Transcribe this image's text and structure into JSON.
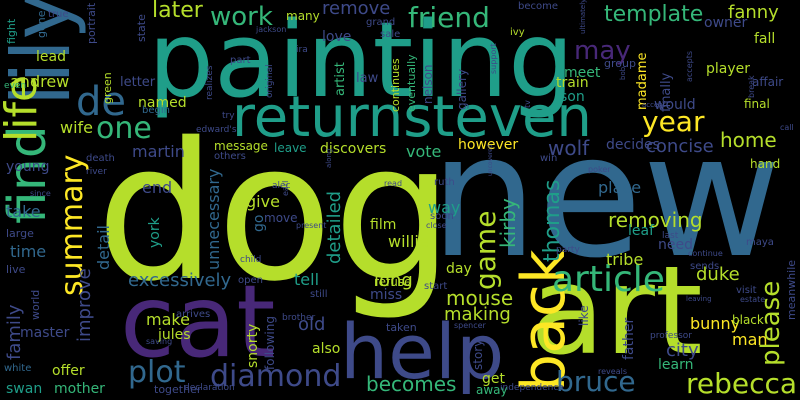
{
  "background": "#000000",
  "palette": {
    "lime": "#b5de2b",
    "green": "#35b779",
    "teal": "#1f9e89",
    "blue": "#31688e",
    "indigo": "#3e4a89",
    "purple": "#482878",
    "yellow": "#fde725"
  },
  "words": {
    "dog": "dog",
    "new": "new",
    "painting": "painting",
    "art": "art",
    "cat": "cat",
    "lily": "lily",
    "returnsteven": "returnsteven",
    "help": "help",
    "find": "find",
    "life": "life",
    "back": "back",
    "article": "article",
    "one": "one",
    "de": "de",
    "summary": "summary",
    "diamond": "diamond",
    "plot": "plot",
    "bruce": "bruce",
    "rebecca": "rebecca",
    "mouse": "mouse",
    "friend": "friend",
    "work": "work",
    "later": "later",
    "may": "may",
    "year": "year",
    "template": "template",
    "fanny": "fanny",
    "game": "game",
    "thomas": "thomas",
    "kirby": "kirby",
    "please": "please",
    "home": "home",
    "concise": "concise",
    "removing": "removing",
    "place": "place",
    "detailed": "detailed",
    "excessively": "excessively",
    "unnecessary": "unnecessary",
    "improve": "improve",
    "detail": "detail",
    "family": "family",
    "long": "long",
    "making": "making",
    "tribe": "tribe",
    "duke": "duke",
    "city": "city",
    "bunny": "bunny",
    "becomes": "becomes",
    "make": "make",
    "take": "take",
    "time": "time",
    "end": "end",
    "york": "york",
    "give": "give",
    "old": "old",
    "tell": "tell",
    "willie": "willie",
    "film": "film",
    "way": "way",
    "martin": "martin",
    "named": "named",
    "message": "message",
    "vote": "vote",
    "however": "however",
    "wolf": "wolf",
    "decides": "decides",
    "meet": "meet",
    "son": "son",
    "madame": "madame",
    "train": "train",
    "remove": "remove",
    "love": "love",
    "artist": "artist",
    "law": "law",
    "andrew": "andrew",
    "lead": "lead",
    "letter": "letter",
    "wife": "wife",
    "young": "young",
    "discovers": "discovers",
    "leave": "leave",
    "go": "go",
    "move": "move",
    "refuse": "refuse",
    "miss": "miss",
    "day": "day",
    "leaf": "leaf",
    "need": "need",
    "father": "father",
    "learn": "learn",
    "man": "man",
    "black": "black",
    "plot2": "plot",
    "jules": "jules",
    "snorty": "snorty",
    "following": "following",
    "also": "also",
    "get": "get",
    "away": "away",
    "offer": "offer",
    "mother": "mother",
    "master": "master",
    "swan": "swan",
    "many": "many",
    "finally": "finally",
    "would": "would",
    "player": "player",
    "fall": "fall",
    "owner": "owner",
    "final": "final",
    "affair": "affair",
    "hand": "hand",
    "story": "story",
    "like": "like",
    "gallery": "gallery",
    "nelson": "nelson",
    "eventually": "eventually",
    "continues": "continues",
    "portrait": "portrait",
    "state": "state",
    "fight": "fight",
    "gene": "gene",
    "green": "green",
    "true": "true",
    "grand": "grand",
    "ivy": "ivy",
    "group": "group",
    "maya": "maya",
    "visit": "visit",
    "meanwhile": "meanwhile",
    "world": "world",
    "live": "live",
    "large": "large",
    "even": "even",
    "white": "white",
    "together": "together",
    "arrives": "arrives",
    "taken": "taken",
    "also_small": "sale",
    "part": "part",
    "begin": "begin",
    "others": "others",
    "edward": "edward's",
    "death": "death",
    "river": "river",
    "alec": "alec",
    "ruth": "ruth",
    "soon": "soon",
    "start": "start",
    "win": "win",
    "party": "party",
    "last": "last",
    "sends": "sends",
    "call": "call",
    "child": "child",
    "open": "open",
    "still": "still",
    "brother": "brother",
    "pass": "pass",
    "declaration": "declaration",
    "independence": "independence",
    "professor": "professor",
    "reveals": "reveals",
    "become": "become",
    "ultimately": "ultimately",
    "jackson": "jackson",
    "ira": "ira",
    "realizes": "realizes",
    "original": "original",
    "support": "support",
    "accepts": "accepts",
    "break": "break",
    "poker": "poker",
    "close": "close",
    "read": "read",
    "present": "present",
    "saving": "saving",
    "spencer": "spencer",
    "continue": "continue",
    "accept": "accept",
    "leaving": "leaving",
    "estate": "estate",
    "since": "since",
    "tv": "tv",
    "try": "try",
    "along": "along",
    "earl": "earl",
    "bob": "bob",
    "uncovered": "uncovered"
  }
}
